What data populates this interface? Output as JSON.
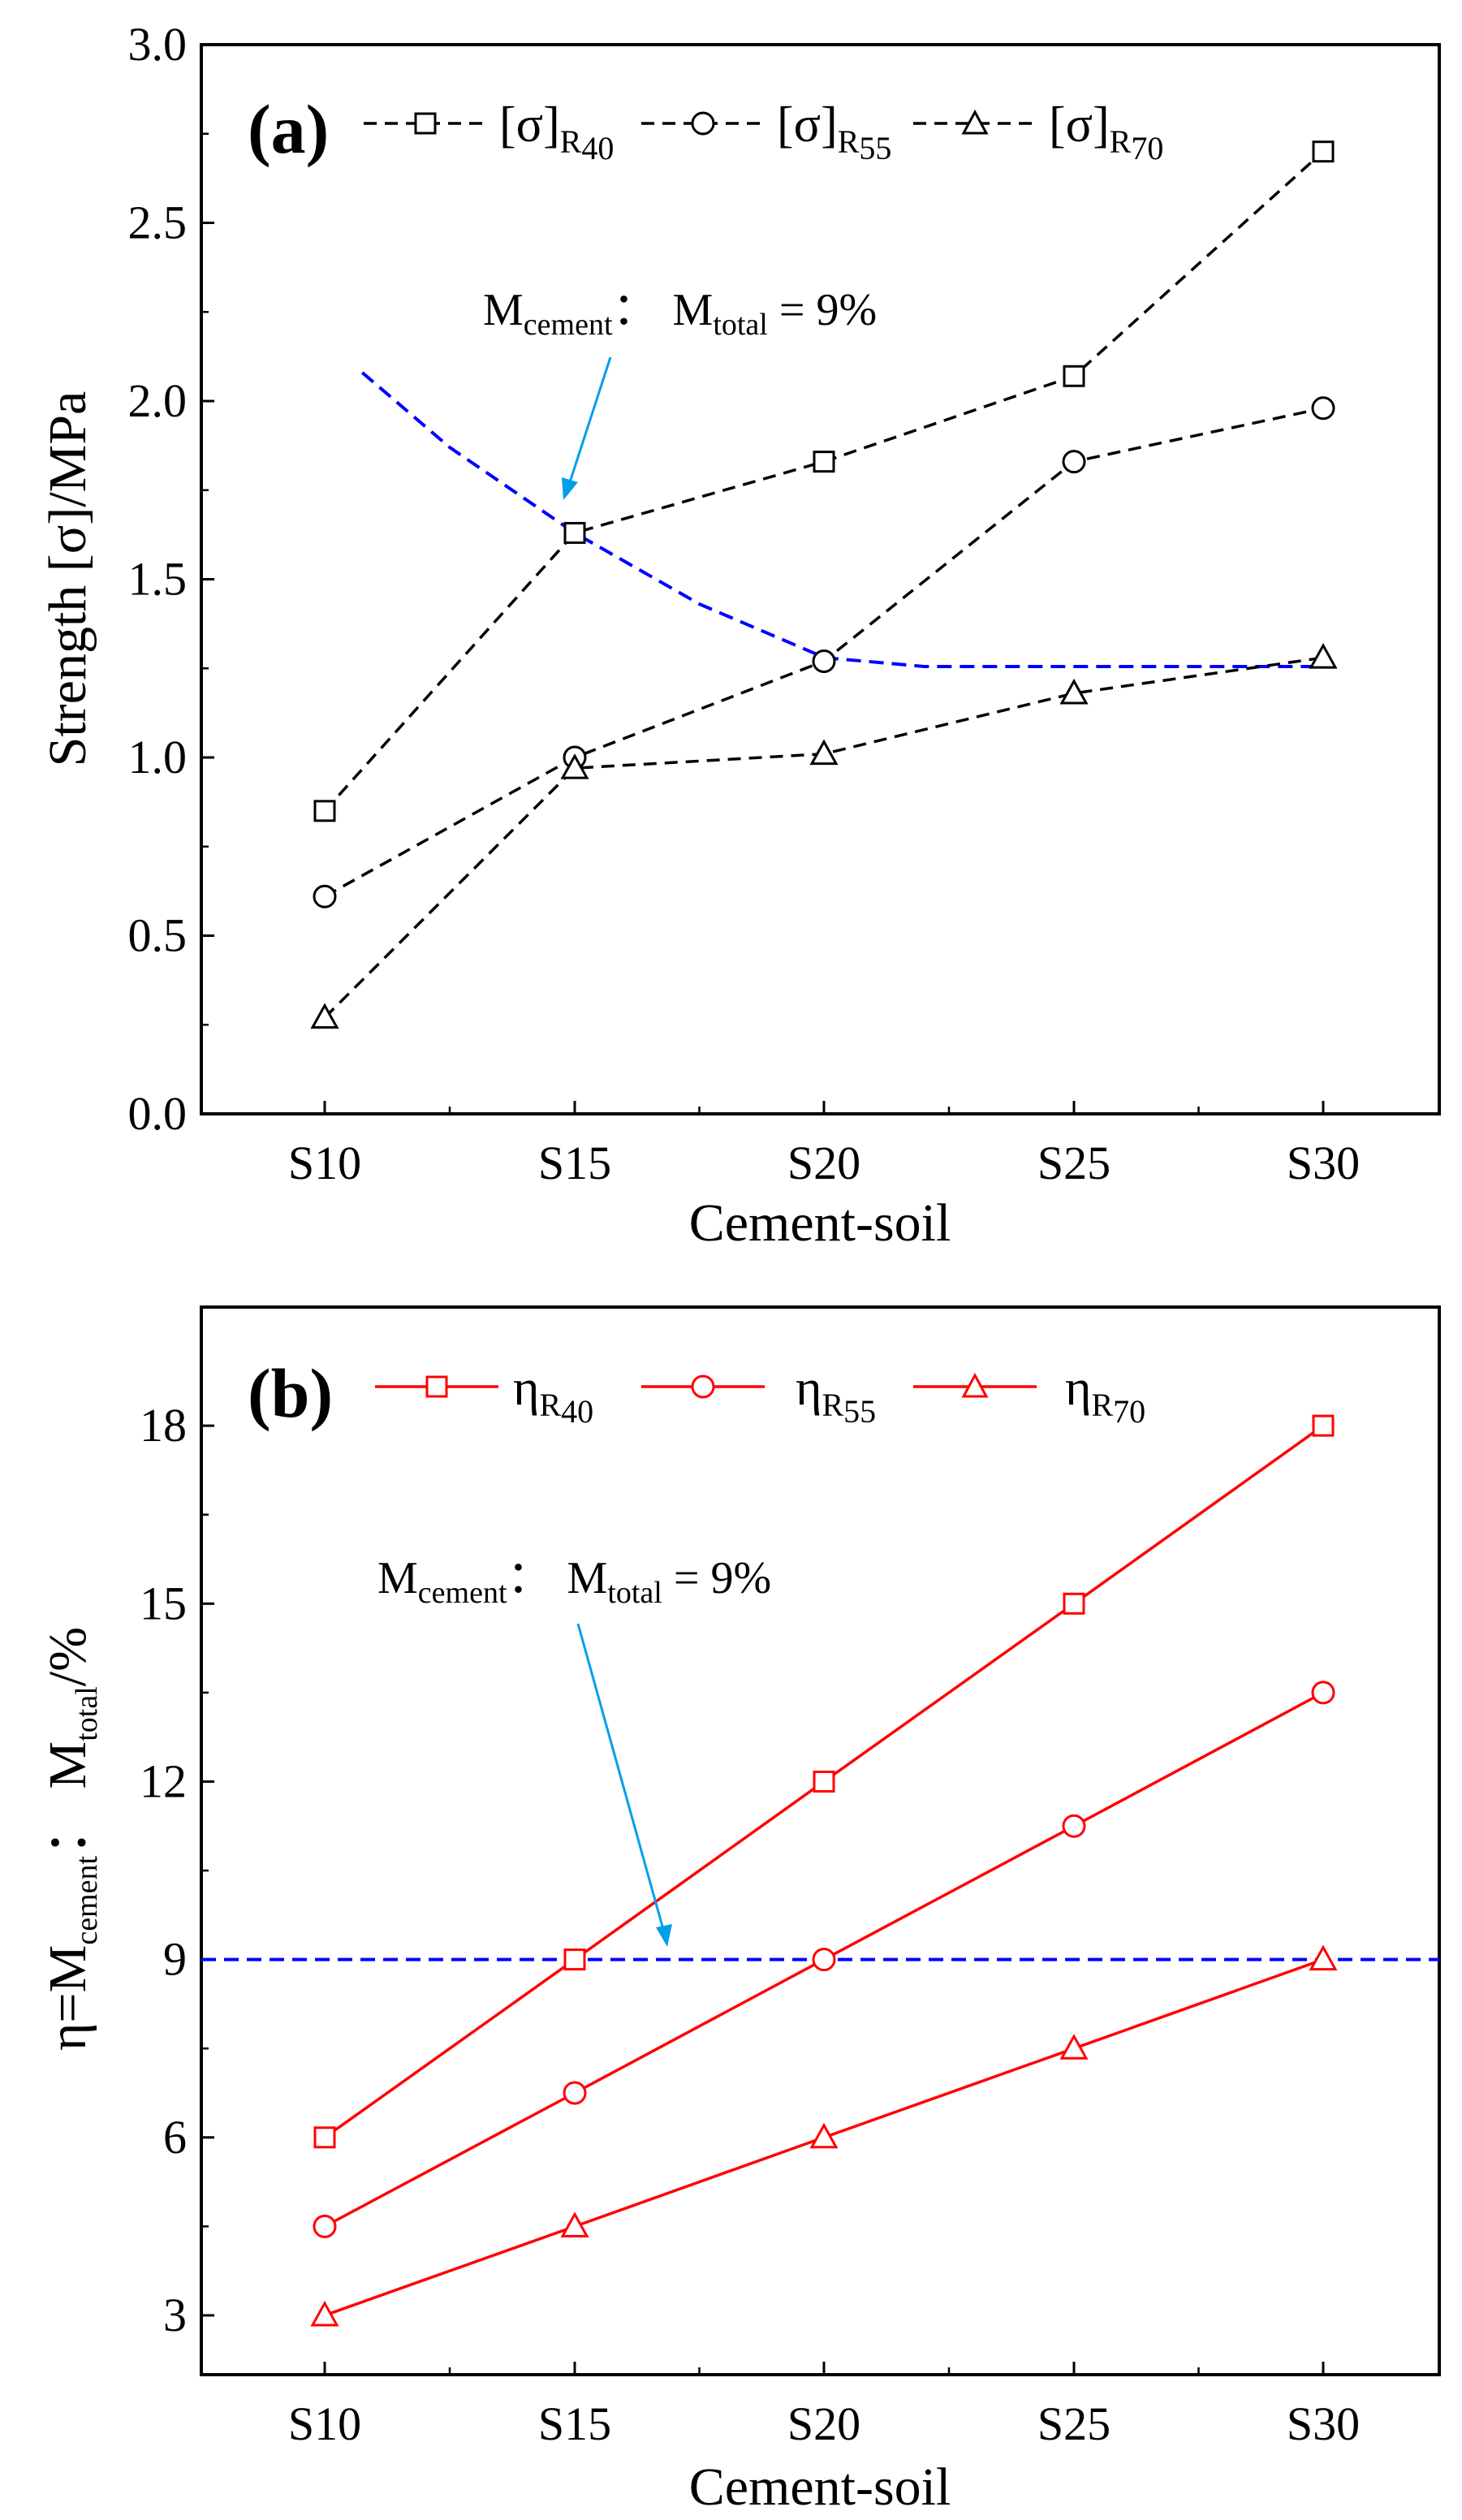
{
  "chart_data": [
    {
      "panel": "(a)",
      "type": "line",
      "categories": [
        "S10",
        "S15",
        "S20",
        "S25",
        "S30"
      ],
      "xlabel": "Cement-soil",
      "ylabel": "Strength [σ]/MPa",
      "ylim": [
        0,
        3.0
      ],
      "yticks": [
        0.0,
        0.5,
        1.0,
        1.5,
        2.0,
        2.5,
        3.0
      ],
      "ytick_labels": [
        "0.0",
        "0.5",
        "1.0",
        "1.5",
        "2.0",
        "2.5",
        "3.0"
      ],
      "series": [
        {
          "name": "[σ]",
          "sub": "R",
          "subsub": "40",
          "marker": "square",
          "line": "dashed",
          "color": "#000000",
          "values": [
            0.85,
            1.63,
            1.83,
            2.07,
            2.7
          ]
        },
        {
          "name": "[σ]",
          "sub": "R",
          "subsub": "55",
          "marker": "circle",
          "line": "dashed",
          "color": "#000000",
          "values": [
            0.61,
            1.0,
            1.27,
            1.83,
            1.98
          ]
        },
        {
          "name": "[σ]",
          "sub": "R",
          "subsub": "70",
          "marker": "triangle",
          "line": "dashed",
          "color": "#000000",
          "values": [
            0.27,
            0.97,
            1.01,
            1.18,
            1.28
          ]
        }
      ],
      "reference_curve": {
        "color": "#0000ff",
        "line": "dashed",
        "points": [
          [
            0.15,
            2.08
          ],
          [
            0.5,
            1.87
          ],
          [
            1.0,
            1.63
          ],
          [
            1.5,
            1.43
          ],
          [
            2.0,
            1.28
          ],
          [
            2.4,
            1.255
          ],
          [
            3.0,
            1.255
          ],
          [
            4.0,
            1.255
          ]
        ]
      },
      "annotation": {
        "m1": "M",
        "s1": "cement",
        "sep": "：",
        "m2": "M",
        "s2": "total",
        "rest": " = 9%",
        "arrow_color": "#00a0e9"
      },
      "legend": "top"
    },
    {
      "panel": "(b)",
      "type": "line",
      "categories": [
        "S10",
        "S15",
        "S20",
        "S25",
        "S30"
      ],
      "xlabel": "Cement-soil",
      "ylabel_parts": {
        "pre": "η=M",
        "s1": "cement",
        "mid": "：  M",
        "s2": "total",
        "post": "/%"
      },
      "ylim": [
        2,
        20
      ],
      "yticks": [
        3,
        6,
        9,
        12,
        15,
        18
      ],
      "ytick_labels": [
        "3",
        "6",
        "9",
        "12",
        "15",
        "18"
      ],
      "series": [
        {
          "name": "η",
          "sub": "R",
          "subsub": "40",
          "marker": "square",
          "line": "solid",
          "color": "#ff0000",
          "values": [
            6.0,
            9.0,
            12.0,
            15.0,
            18.0
          ]
        },
        {
          "name": "η",
          "sub": "R",
          "subsub": "55",
          "marker": "circle",
          "line": "solid",
          "color": "#ff0000",
          "values": [
            4.5,
            6.75,
            9.0,
            11.25,
            13.5
          ]
        },
        {
          "name": "η",
          "sub": "R",
          "subsub": "70",
          "marker": "triangle",
          "line": "solid",
          "color": "#ff0000",
          "values": [
            3.0,
            4.5,
            6.0,
            7.5,
            9.0
          ]
        }
      ],
      "reference_line": {
        "value": 9,
        "color": "#0000ff",
        "line": "dashed"
      },
      "annotation": {
        "m1": "M",
        "s1": "cement",
        "sep": "：",
        "m2": "M",
        "s2": "total",
        "rest": " = 9%",
        "arrow_color": "#00a0e9"
      },
      "legend": "top"
    }
  ]
}
